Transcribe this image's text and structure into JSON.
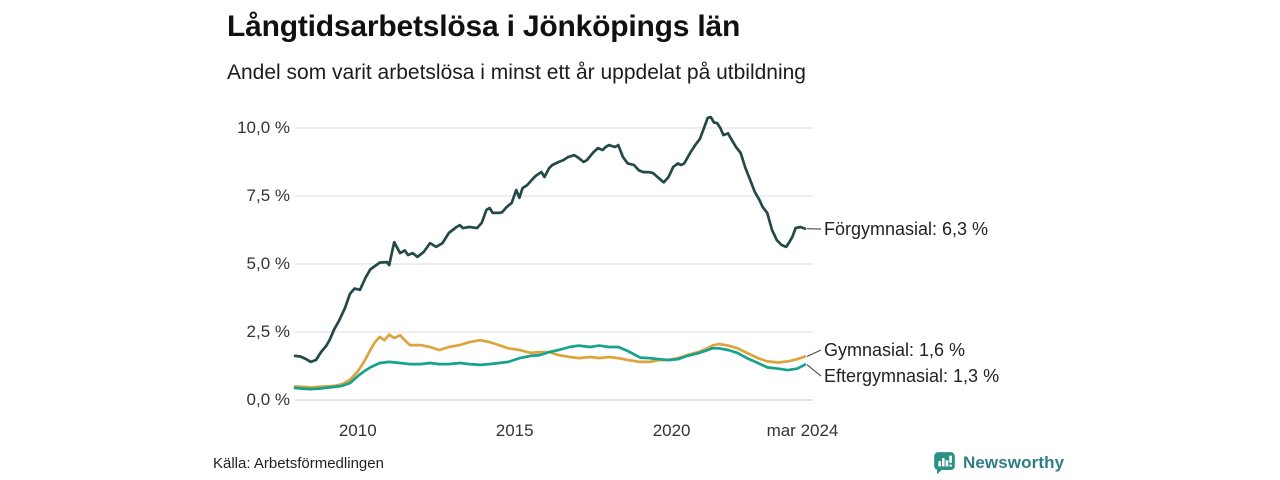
{
  "page": {
    "title": "Långtidsarbetslösa i Jönköpings län",
    "subtitle": "Andel som varit arbetslösa i minst ett år uppdelat på utbildning",
    "source": "Källa: Arbetsförmedlingen"
  },
  "logo": {
    "text": "Newsworthy"
  },
  "colors": {
    "forgymnasial": "#234a46",
    "gymnasial": "#dba43f",
    "eftergymnasial": "#16a28c",
    "grid": "#e3e3e6",
    "zero_line": "#d6d6da",
    "tick_text": "#333333",
    "leader": "#4a4a4a",
    "logo_icon": "#2b9386",
    "logo_text": "#2e7e88"
  },
  "chart_data": {
    "type": "line",
    "title": "Långtidsarbetslösa i Jönköpings län",
    "subtitle": "Andel som varit arbetslösa i minst ett år uppdelat på utbildning",
    "xlabel": "",
    "ylabel": "",
    "grid": true,
    "legend_position": "line-end-labels",
    "x_range": [
      2008.0,
      2024.25
    ],
    "y_range": [
      0,
      10.5
    ],
    "x_ticks": [
      {
        "label": "2010",
        "year": 2010
      },
      {
        "label": "2015",
        "year": 2015
      },
      {
        "label": "2020",
        "year": 2020
      },
      {
        "label": "mar 2024",
        "year": 2024.17
      }
    ],
    "y_ticks": [
      {
        "label": "0,0 %",
        "value": 0
      },
      {
        "label": "2,5 %",
        "value": 2.5
      },
      {
        "label": "5,0 %",
        "value": 5
      },
      {
        "label": "7,5 %",
        "value": 7.5
      },
      {
        "label": "10,0 %",
        "value": 10
      }
    ],
    "series": [
      {
        "name": "Förgymnasial",
        "end_label": "Förgymnasial: 6,3 %",
        "latest_value": "6,3 %",
        "color": "#234a46",
        "points": [
          [
            2008.0,
            1.62
          ],
          [
            2008.17,
            1.6
          ],
          [
            2008.33,
            1.52
          ],
          [
            2008.5,
            1.4
          ],
          [
            2008.67,
            1.47
          ],
          [
            2008.83,
            1.76
          ],
          [
            2009.0,
            2.0
          ],
          [
            2009.1,
            2.2
          ],
          [
            2009.25,
            2.6
          ],
          [
            2009.4,
            2.9
          ],
          [
            2009.6,
            3.4
          ],
          [
            2009.75,
            3.9
          ],
          [
            2009.9,
            4.1
          ],
          [
            2010.07,
            4.05
          ],
          [
            2010.25,
            4.5
          ],
          [
            2010.4,
            4.8
          ],
          [
            2010.7,
            5.05
          ],
          [
            2010.93,
            5.07
          ],
          [
            2011.0,
            4.96
          ],
          [
            2011.16,
            5.8
          ],
          [
            2011.35,
            5.4
          ],
          [
            2011.5,
            5.5
          ],
          [
            2011.6,
            5.33
          ],
          [
            2011.75,
            5.4
          ],
          [
            2011.9,
            5.26
          ],
          [
            2012.1,
            5.44
          ],
          [
            2012.3,
            5.77
          ],
          [
            2012.5,
            5.63
          ],
          [
            2012.7,
            5.77
          ],
          [
            2012.9,
            6.14
          ],
          [
            2013.15,
            6.36
          ],
          [
            2013.25,
            6.43
          ],
          [
            2013.35,
            6.32
          ],
          [
            2013.55,
            6.36
          ],
          [
            2013.8,
            6.32
          ],
          [
            2013.95,
            6.51
          ],
          [
            2014.1,
            6.99
          ],
          [
            2014.2,
            7.06
          ],
          [
            2014.3,
            6.88
          ],
          [
            2014.5,
            6.88
          ],
          [
            2014.6,
            6.9
          ],
          [
            2014.75,
            7.1
          ],
          [
            2014.9,
            7.24
          ],
          [
            2015.05,
            7.72
          ],
          [
            2015.15,
            7.43
          ],
          [
            2015.25,
            7.79
          ],
          [
            2015.4,
            7.9
          ],
          [
            2015.6,
            8.16
          ],
          [
            2015.7,
            8.27
          ],
          [
            2015.85,
            8.38
          ],
          [
            2015.95,
            8.2
          ],
          [
            2016.1,
            8.53
          ],
          [
            2016.2,
            8.64
          ],
          [
            2016.4,
            8.75
          ],
          [
            2016.55,
            8.82
          ],
          [
            2016.7,
            8.93
          ],
          [
            2016.9,
            9.0
          ],
          [
            2017.0,
            8.93
          ],
          [
            2017.2,
            8.75
          ],
          [
            2017.3,
            8.82
          ],
          [
            2017.5,
            9.1
          ],
          [
            2017.65,
            9.26
          ],
          [
            2017.8,
            9.19
          ],
          [
            2017.9,
            9.3
          ],
          [
            2018.0,
            9.37
          ],
          [
            2018.2,
            9.3
          ],
          [
            2018.3,
            9.37
          ],
          [
            2018.45,
            8.93
          ],
          [
            2018.6,
            8.7
          ],
          [
            2018.8,
            8.64
          ],
          [
            2018.95,
            8.45
          ],
          [
            2019.1,
            8.38
          ],
          [
            2019.25,
            8.38
          ],
          [
            2019.4,
            8.35
          ],
          [
            2019.55,
            8.2
          ],
          [
            2019.65,
            8.1
          ],
          [
            2019.75,
            8.0
          ],
          [
            2019.9,
            8.2
          ],
          [
            2020.05,
            8.57
          ],
          [
            2020.2,
            8.7
          ],
          [
            2020.3,
            8.64
          ],
          [
            2020.4,
            8.7
          ],
          [
            2020.6,
            9.1
          ],
          [
            2020.75,
            9.37
          ],
          [
            2020.9,
            9.6
          ],
          [
            2021.0,
            9.9
          ],
          [
            2021.15,
            10.37
          ],
          [
            2021.25,
            10.4
          ],
          [
            2021.35,
            10.2
          ],
          [
            2021.45,
            10.18
          ],
          [
            2021.55,
            10.0
          ],
          [
            2021.65,
            9.74
          ],
          [
            2021.8,
            9.8
          ],
          [
            2021.9,
            9.6
          ],
          [
            2022.05,
            9.3
          ],
          [
            2022.2,
            9.08
          ],
          [
            2022.35,
            8.53
          ],
          [
            2022.5,
            8.1
          ],
          [
            2022.65,
            7.65
          ],
          [
            2022.8,
            7.35
          ],
          [
            2022.9,
            7.1
          ],
          [
            2023.05,
            6.87
          ],
          [
            2023.2,
            6.25
          ],
          [
            2023.35,
            5.88
          ],
          [
            2023.5,
            5.7
          ],
          [
            2023.65,
            5.63
          ],
          [
            2023.75,
            5.8
          ],
          [
            2023.85,
            6.0
          ],
          [
            2023.95,
            6.32
          ],
          [
            2024.1,
            6.36
          ],
          [
            2024.25,
            6.3
          ]
        ]
      },
      {
        "name": "Gymnasial",
        "end_label": "Gymnasial: 1,6 %",
        "latest_value": "1,6 %",
        "color": "#dba43f",
        "points": [
          [
            2008.0,
            0.5
          ],
          [
            2008.25,
            0.48
          ],
          [
            2008.5,
            0.46
          ],
          [
            2008.75,
            0.48
          ],
          [
            2009.0,
            0.5
          ],
          [
            2009.25,
            0.52
          ],
          [
            2009.5,
            0.58
          ],
          [
            2009.75,
            0.74
          ],
          [
            2010.0,
            1.05
          ],
          [
            2010.2,
            1.4
          ],
          [
            2010.4,
            1.84
          ],
          [
            2010.55,
            2.13
          ],
          [
            2010.7,
            2.32
          ],
          [
            2010.85,
            2.2
          ],
          [
            2011.0,
            2.4
          ],
          [
            2011.16,
            2.28
          ],
          [
            2011.35,
            2.38
          ],
          [
            2011.5,
            2.2
          ],
          [
            2011.66,
            2.02
          ],
          [
            2012.0,
            2.02
          ],
          [
            2012.3,
            1.95
          ],
          [
            2012.6,
            1.84
          ],
          [
            2012.9,
            1.95
          ],
          [
            2013.25,
            2.02
          ],
          [
            2013.56,
            2.13
          ],
          [
            2013.9,
            2.2
          ],
          [
            2014.2,
            2.13
          ],
          [
            2014.5,
            2.02
          ],
          [
            2014.8,
            1.9
          ],
          [
            2015.16,
            1.84
          ],
          [
            2015.5,
            1.73
          ],
          [
            2015.8,
            1.76
          ],
          [
            2016.1,
            1.76
          ],
          [
            2016.4,
            1.65
          ],
          [
            2016.75,
            1.58
          ],
          [
            2017.05,
            1.54
          ],
          [
            2017.4,
            1.58
          ],
          [
            2017.7,
            1.54
          ],
          [
            2018.0,
            1.58
          ],
          [
            2018.3,
            1.54
          ],
          [
            2018.6,
            1.47
          ],
          [
            2019.0,
            1.4
          ],
          [
            2019.3,
            1.4
          ],
          [
            2019.6,
            1.47
          ],
          [
            2019.9,
            1.47
          ],
          [
            2020.2,
            1.54
          ],
          [
            2020.5,
            1.65
          ],
          [
            2020.85,
            1.76
          ],
          [
            2021.16,
            1.91
          ],
          [
            2021.3,
            2.0
          ],
          [
            2021.5,
            2.06
          ],
          [
            2021.8,
            2.0
          ],
          [
            2022.1,
            1.9
          ],
          [
            2022.4,
            1.73
          ],
          [
            2022.75,
            1.54
          ],
          [
            2023.05,
            1.42
          ],
          [
            2023.4,
            1.38
          ],
          [
            2023.7,
            1.42
          ],
          [
            2024.0,
            1.5
          ],
          [
            2024.25,
            1.6
          ]
        ]
      },
      {
        "name": "Eftergymnasial",
        "end_label": "Eftergymnasial: 1,3 %",
        "latest_value": "1,3 %",
        "color": "#16a28c",
        "points": [
          [
            2008.0,
            0.44
          ],
          [
            2008.25,
            0.42
          ],
          [
            2008.5,
            0.4
          ],
          [
            2008.75,
            0.42
          ],
          [
            2009.0,
            0.45
          ],
          [
            2009.25,
            0.48
          ],
          [
            2009.5,
            0.52
          ],
          [
            2009.75,
            0.62
          ],
          [
            2010.0,
            0.88
          ],
          [
            2010.2,
            1.05
          ],
          [
            2010.4,
            1.2
          ],
          [
            2010.7,
            1.36
          ],
          [
            2011.0,
            1.4
          ],
          [
            2011.35,
            1.36
          ],
          [
            2011.66,
            1.32
          ],
          [
            2012.0,
            1.32
          ],
          [
            2012.3,
            1.36
          ],
          [
            2012.6,
            1.32
          ],
          [
            2012.9,
            1.32
          ],
          [
            2013.25,
            1.36
          ],
          [
            2013.56,
            1.32
          ],
          [
            2013.9,
            1.29
          ],
          [
            2014.2,
            1.32
          ],
          [
            2014.5,
            1.36
          ],
          [
            2014.8,
            1.4
          ],
          [
            2015.16,
            1.54
          ],
          [
            2015.5,
            1.62
          ],
          [
            2015.8,
            1.65
          ],
          [
            2016.1,
            1.76
          ],
          [
            2016.4,
            1.84
          ],
          [
            2016.75,
            1.95
          ],
          [
            2017.05,
            2.0
          ],
          [
            2017.4,
            1.95
          ],
          [
            2017.7,
            2.0
          ],
          [
            2018.0,
            1.95
          ],
          [
            2018.3,
            1.95
          ],
          [
            2018.6,
            1.8
          ],
          [
            2019.0,
            1.56
          ],
          [
            2019.3,
            1.54
          ],
          [
            2019.6,
            1.5
          ],
          [
            2019.9,
            1.47
          ],
          [
            2020.2,
            1.5
          ],
          [
            2020.5,
            1.62
          ],
          [
            2020.85,
            1.72
          ],
          [
            2021.16,
            1.84
          ],
          [
            2021.3,
            1.9
          ],
          [
            2021.5,
            1.9
          ],
          [
            2021.8,
            1.84
          ],
          [
            2022.1,
            1.73
          ],
          [
            2022.4,
            1.54
          ],
          [
            2022.75,
            1.36
          ],
          [
            2023.05,
            1.2
          ],
          [
            2023.4,
            1.15
          ],
          [
            2023.7,
            1.1
          ],
          [
            2024.0,
            1.15
          ],
          [
            2024.25,
            1.3
          ]
        ]
      }
    ]
  }
}
